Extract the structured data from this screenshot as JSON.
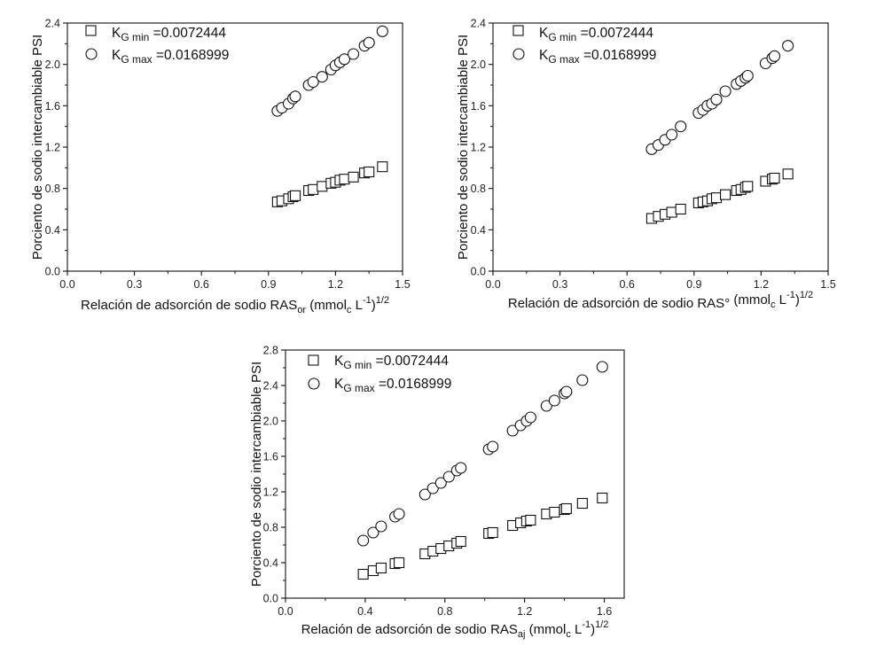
{
  "legend": {
    "kmin_k": "K",
    "kmin_sub": "G min",
    "kmin_val": " =0.0072444",
    "kmax_k": "K",
    "kmax_sub": "G max",
    "kmax_val": " =0.0168999"
  },
  "chart_data": [
    {
      "type": "scatter",
      "ylabel": "Porciento de sodio intercambiable PSI",
      "xlabel_main": "Relación de adsorción de sodio RAS",
      "xlabel_sub": "or",
      "xlabel_tail": " (mmol",
      "xlabel_c": "c",
      "xlabel_unit": " L",
      "xlabel_exp1": "-1",
      "xlabel_close": ")",
      "xlabel_exp2": "1/2",
      "xlim": [
        0,
        1.5
      ],
      "ylim": [
        0,
        2.4
      ],
      "xticks": [
        "0.0",
        "0.3",
        "0.6",
        "0.9",
        "1.2",
        "1.5"
      ],
      "yticks": [
        "0.0",
        "0.4",
        "0.8",
        "1.2",
        "1.6",
        "2.0",
        "2.4"
      ],
      "legend_position": "top-left",
      "series": [
        {
          "name": "KG min =0.0072444",
          "marker": "square",
          "x": [
            0.94,
            0.96,
            0.99,
            1.01,
            1.02,
            1.08,
            1.1,
            1.14,
            1.18,
            1.2,
            1.22,
            1.24,
            1.28,
            1.33,
            1.35,
            1.41
          ],
          "y": [
            0.67,
            0.68,
            0.7,
            0.72,
            0.73,
            0.78,
            0.79,
            0.82,
            0.85,
            0.86,
            0.88,
            0.89,
            0.91,
            0.95,
            0.96,
            1.01
          ]
        },
        {
          "name": "KG max =0.0168999",
          "marker": "circle",
          "x": [
            0.94,
            0.96,
            0.99,
            1.01,
            1.02,
            1.08,
            1.1,
            1.14,
            1.18,
            1.2,
            1.22,
            1.24,
            1.28,
            1.33,
            1.35,
            1.41
          ],
          "y": [
            1.55,
            1.58,
            1.62,
            1.67,
            1.69,
            1.8,
            1.83,
            1.88,
            1.95,
            1.99,
            2.02,
            2.05,
            2.1,
            2.18,
            2.21,
            2.32
          ]
        }
      ]
    },
    {
      "type": "scatter",
      "ylabel": "Porciento de sodio intercambiable PSI",
      "xlabel_main": "Relación de adsorción de sodio RAS°",
      "xlabel_sub": "",
      "xlabel_tail": " (mmol",
      "xlabel_c": "c",
      "xlabel_unit": " L",
      "xlabel_exp1": "-1",
      "xlabel_close": ")",
      "xlabel_exp2": "1/2",
      "xlim": [
        0,
        1.5
      ],
      "ylim": [
        0,
        2.4
      ],
      "xticks": [
        "0.0",
        "0.3",
        "0.6",
        "0.9",
        "1.2",
        "1.5"
      ],
      "yticks": [
        "0.0",
        "0.4",
        "0.8",
        "1.2",
        "1.6",
        "2.0",
        "2.4"
      ],
      "legend_position": "top-left",
      "series": [
        {
          "name": "KG min =0.0072444",
          "marker": "square",
          "x": [
            0.71,
            0.74,
            0.77,
            0.8,
            0.84,
            0.92,
            0.94,
            0.96,
            0.98,
            1.0,
            1.04,
            1.09,
            1.11,
            1.13,
            1.14,
            1.22,
            1.25,
            1.26,
            1.32
          ],
          "y": [
            0.51,
            0.53,
            0.55,
            0.57,
            0.6,
            0.66,
            0.67,
            0.68,
            0.7,
            0.71,
            0.74,
            0.78,
            0.79,
            0.81,
            0.82,
            0.87,
            0.89,
            0.9,
            0.94
          ]
        },
        {
          "name": "KG max =0.0168999",
          "marker": "circle",
          "x": [
            0.71,
            0.74,
            0.77,
            0.8,
            0.84,
            0.92,
            0.94,
            0.96,
            0.98,
            1.0,
            1.04,
            1.09,
            1.11,
            1.13,
            1.14,
            1.22,
            1.25,
            1.26,
            1.32
          ],
          "y": [
            1.18,
            1.22,
            1.27,
            1.32,
            1.4,
            1.53,
            1.56,
            1.6,
            1.62,
            1.66,
            1.74,
            1.81,
            1.84,
            1.87,
            1.89,
            2.01,
            2.06,
            2.08,
            2.18
          ]
        }
      ]
    },
    {
      "type": "scatter",
      "ylabel": "Porciento de sodio intercambiable PSI",
      "xlabel_main": "Relación de adsorción de sodio RAS",
      "xlabel_sub": "aj",
      "xlabel_tail": " (mmol",
      "xlabel_c": "c",
      "xlabel_unit": " L",
      "xlabel_exp1": "-1",
      "xlabel_close": ")",
      "xlabel_exp2": "1/2",
      "xlim": [
        0,
        1.7
      ],
      "ylim": [
        0,
        2.8
      ],
      "xticks": [
        "0.0",
        "0.4",
        "0.8",
        "1.2",
        "1.6"
      ],
      "yticks": [
        "0.0",
        "0.4",
        "0.8",
        "1.2",
        "1.6",
        "2.0",
        "2.4",
        "2.8"
      ],
      "legend_position": "top-left",
      "series": [
        {
          "name": "KG min =0.0072444",
          "marker": "square",
          "x": [
            0.39,
            0.44,
            0.48,
            0.55,
            0.57,
            0.7,
            0.74,
            0.78,
            0.82,
            0.86,
            0.88,
            1.02,
            1.04,
            1.14,
            1.18,
            1.21,
            1.23,
            1.31,
            1.35,
            1.4,
            1.41,
            1.49,
            1.59
          ],
          "y": [
            0.27,
            0.31,
            0.34,
            0.39,
            0.4,
            0.5,
            0.53,
            0.56,
            0.59,
            0.62,
            0.64,
            0.73,
            0.74,
            0.82,
            0.85,
            0.87,
            0.88,
            0.95,
            0.97,
            1.0,
            1.01,
            1.07,
            1.13
          ]
        },
        {
          "name": "KG max =0.0168999",
          "marker": "circle",
          "x": [
            0.39,
            0.44,
            0.48,
            0.55,
            0.57,
            0.7,
            0.74,
            0.78,
            0.82,
            0.86,
            0.88,
            1.02,
            1.04,
            1.14,
            1.18,
            1.21,
            1.23,
            1.31,
            1.35,
            1.4,
            1.41,
            1.49,
            1.59
          ],
          "y": [
            0.65,
            0.74,
            0.81,
            0.92,
            0.95,
            1.17,
            1.24,
            1.3,
            1.37,
            1.44,
            1.47,
            1.68,
            1.71,
            1.89,
            1.95,
            2.0,
            2.04,
            2.17,
            2.23,
            2.31,
            2.33,
            2.46,
            2.61
          ]
        }
      ]
    }
  ]
}
